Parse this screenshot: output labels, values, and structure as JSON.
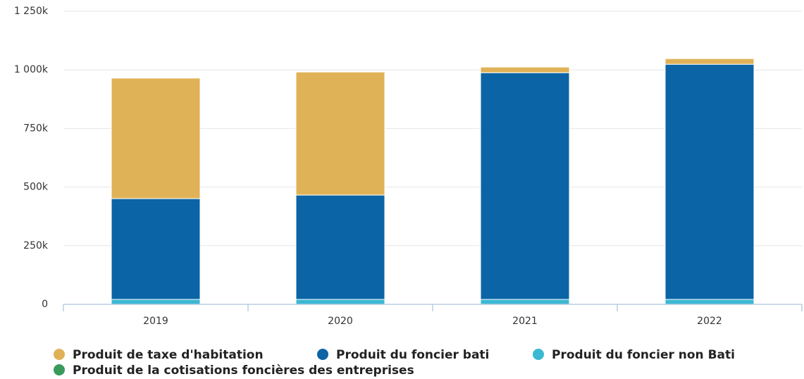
{
  "chart_data": {
    "type": "stacked_bar",
    "categories": [
      "2019",
      "2020",
      "2021",
      "2022"
    ],
    "series": [
      {
        "name": "Produit de taxe d'habitation",
        "color": "#e0b257",
        "values": [
          514000,
          525000,
          24000,
          24000
        ]
      },
      {
        "name": "Produit du foncier bati",
        "color": "#0b64a5",
        "values": [
          430000,
          445000,
          967000,
          1003000
        ]
      },
      {
        "name": "Produit du foncier non Bati",
        "color": "#3bb8d2",
        "values": [
          21000,
          21000,
          21000,
          21000
        ]
      },
      {
        "name": "Produit de la cotisations foncières des entreprises",
        "color": "#3a9a5c",
        "values": [
          0,
          0,
          0,
          0
        ]
      }
    ],
    "ylim": [
      0,
      1250000
    ],
    "yticks": [
      0,
      {
        "value": 250000,
        "label": "250k"
      },
      {
        "value": 500000,
        "label": "500k"
      },
      {
        "value": 750000,
        "label": "750k"
      },
      {
        "value": 1000000,
        "label": "1 000k"
      },
      {
        "value": 1250000,
        "label": "1 250k"
      }
    ],
    "grid": true,
    "legend": "bottom"
  }
}
